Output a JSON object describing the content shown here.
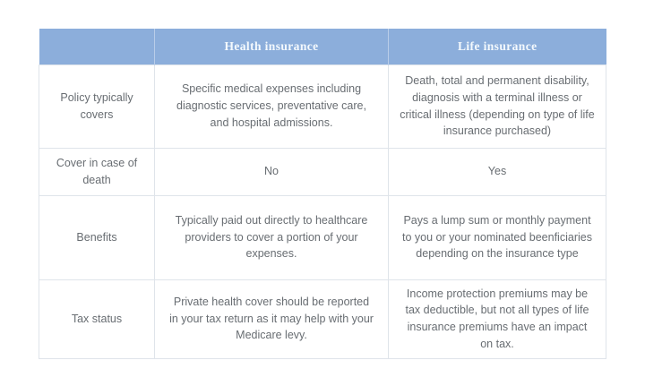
{
  "table": {
    "corner_label": "",
    "columns": [
      {
        "label": "Health insurance"
      },
      {
        "label": "Life insurance"
      }
    ],
    "rows": [
      {
        "label": "Policy typically covers",
        "health": "Specific medical expenses including diagnostic services, preventative care, and hospital admissions.",
        "life": "Death, total and permanent disability, diagnosis with a terminal illness or critical illness (depending on type of life insurance purchased)"
      },
      {
        "label": "Cover in case of death",
        "health": "No",
        "life": "Yes"
      },
      {
        "label": "Benefits",
        "health": "Typically paid out directly to healthcare providers to cover a portion of your expenses.",
        "life": "Pays a lump sum or monthly payment to you or your nominated beenficiaries depending on the insurance type"
      },
      {
        "label": "Tax status",
        "health": "Private health cover should be reported in your tax return as it may help with your Medicare levy.",
        "life": "Income protection premiums may be tax deductible, but not all types of life insurance premiums have an impact on tax."
      }
    ],
    "colors": {
      "header_background": "#8caedb",
      "header_text": "#f4f9fd",
      "header_divider": "#b9cde9",
      "body_text": "#686d72",
      "border": "#dfe4ea",
      "page_background": "#ffffff"
    }
  }
}
